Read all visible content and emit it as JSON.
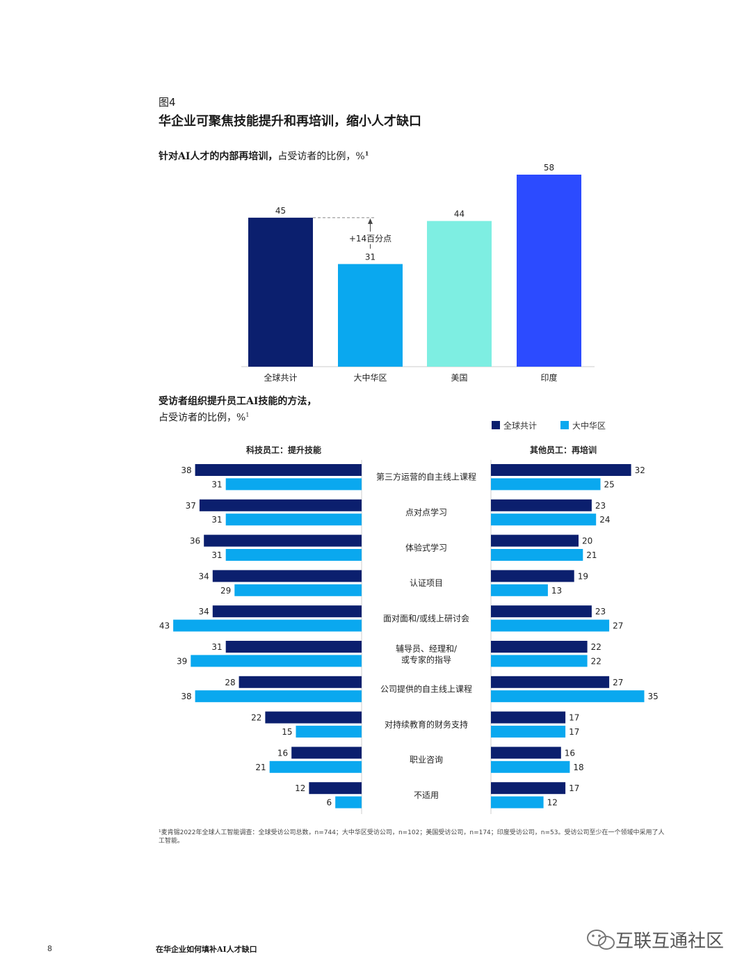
{
  "figure": {
    "label": "图4",
    "title": "华企业可聚焦技能提升和再培训，缩小人才缺口"
  },
  "chart1": {
    "title_bold": "针对AI人才的内部再培训，",
    "title_rest": "占受访者的比例，%",
    "title_sup": "1",
    "annotation": "+14百分点"
  },
  "chart2": {
    "title_line1": "受访者组织提升员工AI技能的方法，",
    "title_line2": "占受访者的比例，%",
    "title_sup": "1",
    "left_header": "科技员工：提升技能",
    "right_header": "其他员工：再培训",
    "legend": [
      "全球共计",
      "大中华区"
    ]
  },
  "colors": {
    "global": "#0b1f6e",
    "greater_china": "#0aa8ef",
    "usa": "#7eeee2",
    "india": "#2c4bff",
    "axis": "#cccccc"
  },
  "chart_data": [
    {
      "type": "bar",
      "title": "针对AI人才的内部再培训，占受访者的比例，%",
      "categories": [
        "全球共计",
        "大中华区",
        "美国",
        "印度"
      ],
      "values": [
        45,
        31,
        44,
        58
      ],
      "ylim": [
        0,
        58
      ],
      "annotations": [
        {
          "from": "全球共计",
          "to": "大中华区",
          "text": "+14百分点"
        }
      ]
    },
    {
      "type": "bar",
      "orientation": "horizontal",
      "title": "受访者组织提升员工AI技能的方法，占受访者的比例，%",
      "legend_position": "top-right",
      "categories": [
        "第三方运营的自主线上课程",
        "点对点学习",
        "体验式学习",
        "认证项目",
        "面对面和/或线上研讨会",
        "辅导员、经理和/或专家的指导",
        "公司提供的自主线上课程",
        "对持续教育的财务支持",
        "职业咨询",
        "不适用"
      ],
      "category_lines": [
        [
          "第三方运营的自主线上课程"
        ],
        [
          "点对点学习"
        ],
        [
          "体验式学习"
        ],
        [
          "认证项目"
        ],
        [
          "面对面和/或线上研讨会"
        ],
        [
          "辅导员、经理和/",
          "或专家的指导"
        ],
        [
          "公司提供的自主线上课程"
        ],
        [
          "对持续教育的财务支持"
        ],
        [
          "职业咨询"
        ],
        [
          "不适用"
        ]
      ],
      "panels": [
        {
          "name": "科技员工：提升技能",
          "series": [
            {
              "name": "全球共计",
              "values": [
                38,
                37,
                36,
                34,
                34,
                31,
                28,
                22,
                16,
                12
              ]
            },
            {
              "name": "大中华区",
              "values": [
                31,
                31,
                31,
                29,
                43,
                39,
                38,
                15,
                21,
                6
              ]
            }
          ]
        },
        {
          "name": "其他员工：再培训",
          "series": [
            {
              "name": "全球共计",
              "values": [
                32,
                23,
                20,
                19,
                23,
                22,
                27,
                17,
                16,
                17
              ]
            },
            {
              "name": "大中华区",
              "values": [
                25,
                24,
                21,
                13,
                27,
                22,
                35,
                17,
                18,
                12
              ]
            }
          ]
        }
      ]
    }
  ],
  "footnote": "¹麦肯锡2022年全球人工智能调查：全球受访公司总数，n=744；大中华区受访公司，n=102；美国受访公司，n=174；印度受访公司，n=53。受访公司至少在一个领域中采用了人工智能。",
  "footer": {
    "page_number": "8",
    "title": "在华企业如何填补AI人才缺口"
  },
  "watermark": "互联互通社区"
}
